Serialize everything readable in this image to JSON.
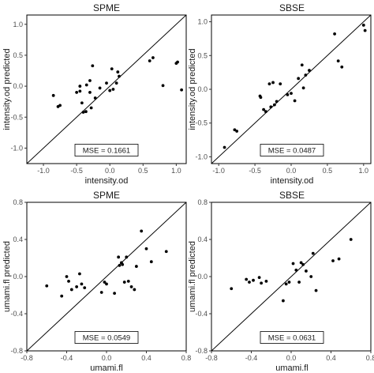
{
  "colors": {
    "point": "#000000",
    "frame": "#000000",
    "line": "#000000"
  },
  "chart_data": [
    {
      "type": "scatter",
      "title": "SPME",
      "xlabel": "intensity.od",
      "ylabel": "intensity.od predicted",
      "xlim": [
        -1.25,
        1.15
      ],
      "ylim": [
        -1.25,
        1.15
      ],
      "xticks": [
        -1.0,
        -0.5,
        0.0,
        0.5,
        1.0
      ],
      "yticks": [
        -1.0,
        -0.5,
        0.0,
        0.5,
        1.0
      ],
      "xtick_labels": [
        "-1.0",
        "-0.5",
        "0.0",
        "0.5",
        "1.0"
      ],
      "ytick_labels": [
        "-1.0",
        "-0.5",
        "0.0",
        "0.5",
        "1.0"
      ],
      "grid": false,
      "reference_line": "y = x",
      "annotation": "MSE = 0.1661",
      "points": [
        [
          -0.85,
          -0.15
        ],
        [
          -0.78,
          -0.33
        ],
        [
          -0.75,
          -0.31
        ],
        [
          -0.5,
          -0.1
        ],
        [
          -0.45,
          -0.08
        ],
        [
          -0.45,
          0.0
        ],
        [
          -0.42,
          -0.27
        ],
        [
          -0.4,
          -0.42
        ],
        [
          -0.36,
          -0.41
        ],
        [
          -0.35,
          0.02
        ],
        [
          -0.3,
          -0.1
        ],
        [
          -0.3,
          0.09
        ],
        [
          -0.28,
          -0.35
        ],
        [
          -0.26,
          0.33
        ],
        [
          -0.22,
          -0.19
        ],
        [
          -0.15,
          -0.03
        ],
        [
          -0.05,
          0.05
        ],
        [
          0.0,
          -0.07
        ],
        [
          0.03,
          0.28
        ],
        [
          0.05,
          -0.05
        ],
        [
          0.1,
          0.05
        ],
        [
          0.12,
          0.23
        ],
        [
          0.14,
          0.16
        ],
        [
          0.6,
          0.41
        ],
        [
          0.65,
          0.46
        ],
        [
          0.8,
          0.01
        ],
        [
          1.0,
          0.37
        ],
        [
          1.02,
          0.39
        ],
        [
          1.08,
          -0.06
        ]
      ]
    },
    {
      "type": "scatter",
      "title": "SBSE",
      "xlabel": "intensity.od",
      "ylabel": "intensity.od predicted",
      "xlim": [
        -1.1,
        1.1
      ],
      "ylim": [
        -1.1,
        1.1
      ],
      "xticks": [
        -1.0,
        -0.5,
        0.0,
        0.5,
        1.0
      ],
      "yticks": [
        -1.0,
        -0.5,
        0.0,
        0.5,
        1.0
      ],
      "xtick_labels": [
        "-1.0",
        "-0.5",
        "0.0",
        "0.5",
        "1.0"
      ],
      "ytick_labels": [
        "-1.0",
        "-0.5",
        "0.0",
        "0.5",
        "1.0"
      ],
      "grid": false,
      "reference_line": "y = x",
      "annotation": "MSE = 0.0487",
      "points": [
        [
          -0.92,
          -0.86
        ],
        [
          -0.78,
          -0.6
        ],
        [
          -0.75,
          -0.62
        ],
        [
          -0.43,
          -0.1
        ],
        [
          -0.42,
          -0.12
        ],
        [
          -0.38,
          -0.3
        ],
        [
          -0.35,
          -0.33
        ],
        [
          -0.3,
          0.08
        ],
        [
          -0.28,
          -0.26
        ],
        [
          -0.25,
          0.1
        ],
        [
          -0.23,
          -0.23
        ],
        [
          -0.2,
          -0.18
        ],
        [
          -0.15,
          0.08
        ],
        [
          -0.05,
          -0.08
        ],
        [
          0.0,
          -0.06
        ],
        [
          0.05,
          -0.17
        ],
        [
          0.1,
          0.16
        ],
        [
          0.15,
          0.36
        ],
        [
          0.17,
          0.02
        ],
        [
          0.2,
          0.21
        ],
        [
          0.25,
          0.28
        ],
        [
          0.6,
          0.82
        ],
        [
          0.65,
          0.42
        ],
        [
          0.7,
          0.33
        ],
        [
          1.0,
          0.95
        ],
        [
          1.02,
          0.87
        ]
      ]
    },
    {
      "type": "scatter",
      "title": "SPME",
      "xlabel": "umami.fl",
      "ylabel": "umami.fl predicted",
      "xlim": [
        -0.8,
        0.8
      ],
      "ylim": [
        -0.8,
        0.8
      ],
      "xticks": [
        -0.8,
        -0.4,
        0.0,
        0.4,
        0.8
      ],
      "yticks": [
        -0.8,
        -0.4,
        0.0,
        0.4,
        0.8
      ],
      "xtick_labels": [
        "-0.8",
        "-0.4",
        "0.0",
        "0.4",
        "0.8"
      ],
      "ytick_labels": [
        "-0.8",
        "-0.4",
        "0.0",
        "0.4",
        "0.8"
      ],
      "grid": false,
      "reference_line": "y = x",
      "annotation": "MSE = 0.0549",
      "points": [
        [
          -0.6,
          -0.1
        ],
        [
          -0.45,
          -0.21
        ],
        [
          -0.4,
          0.0
        ],
        [
          -0.38,
          -0.05
        ],
        [
          -0.35,
          -0.14
        ],
        [
          -0.3,
          -0.11
        ],
        [
          -0.27,
          0.03
        ],
        [
          -0.25,
          -0.08
        ],
        [
          -0.22,
          -0.12
        ],
        [
          -0.05,
          -0.17
        ],
        [
          -0.02,
          -0.06
        ],
        [
          0.0,
          -0.08
        ],
        [
          0.08,
          -0.18
        ],
        [
          0.12,
          0.21
        ],
        [
          0.13,
          0.12
        ],
        [
          0.15,
          0.15
        ],
        [
          0.16,
          0.13
        ],
        [
          0.18,
          -0.06
        ],
        [
          0.2,
          0.21
        ],
        [
          0.22,
          -0.05
        ],
        [
          0.25,
          -0.11
        ],
        [
          0.28,
          -0.14
        ],
        [
          0.3,
          0.11
        ],
        [
          0.35,
          0.49
        ],
        [
          0.4,
          0.3
        ],
        [
          0.45,
          0.16
        ],
        [
          0.6,
          0.27
        ]
      ]
    },
    {
      "type": "scatter",
      "title": "SBSE",
      "xlabel": "umami.fl",
      "ylabel": "umami.fl predicted",
      "xlim": [
        -0.8,
        0.8
      ],
      "ylim": [
        -0.8,
        0.8
      ],
      "xticks": [
        -0.8,
        -0.4,
        0.0,
        0.4,
        0.8
      ],
      "yticks": [
        -0.8,
        -0.4,
        0.0,
        0.4,
        0.8
      ],
      "xtick_labels": [
        "-0.8",
        "-0.4",
        "0.0",
        "0.4",
        "0.8"
      ],
      "ytick_labels": [
        "-0.8",
        "-0.4",
        "0.0",
        "0.4",
        "0.8"
      ],
      "grid": false,
      "reference_line": "y = x",
      "annotation": "MSE = 0.0631",
      "points": [
        [
          -0.6,
          -0.13
        ],
        [
          -0.45,
          -0.03
        ],
        [
          -0.42,
          -0.06
        ],
        [
          -0.38,
          -0.04
        ],
        [
          -0.32,
          -0.01
        ],
        [
          -0.3,
          -0.07
        ],
        [
          -0.25,
          -0.05
        ],
        [
          -0.08,
          -0.26
        ],
        [
          -0.05,
          -0.08
        ],
        [
          -0.02,
          -0.06
        ],
        [
          0.02,
          0.14
        ],
        [
          0.05,
          0.07
        ],
        [
          0.08,
          -0.06
        ],
        [
          0.1,
          0.15
        ],
        [
          0.12,
          0.13
        ],
        [
          0.15,
          0.06
        ],
        [
          0.2,
          0.0
        ],
        [
          0.22,
          0.25
        ],
        [
          0.25,
          -0.15
        ],
        [
          0.42,
          0.17
        ],
        [
          0.48,
          0.19
        ],
        [
          0.6,
          0.4
        ]
      ]
    }
  ]
}
